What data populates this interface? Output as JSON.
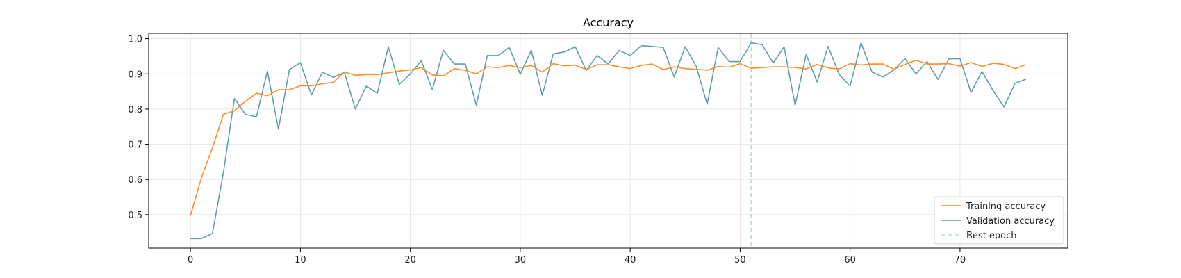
{
  "chart_data": {
    "type": "line",
    "title": "Accuracy",
    "xlabel": "",
    "ylabel": "",
    "xlim": [
      -3.8,
      79.8
    ],
    "ylim": [
      0.405,
      1.015
    ],
    "xticks": [
      0,
      10,
      20,
      30,
      40,
      50,
      60,
      70
    ],
    "yticks": [
      0.5,
      0.6,
      0.7,
      0.8,
      0.9,
      1.0
    ],
    "xtick_labels": [
      "0",
      "10",
      "20",
      "30",
      "40",
      "50",
      "60",
      "70"
    ],
    "ytick_labels": [
      "0.5",
      "0.6",
      "0.7",
      "0.8",
      "0.9",
      "1.0"
    ],
    "grid": true,
    "legend_position": "lower-right",
    "best_epoch": 51,
    "series": [
      {
        "name": "Training accuracy",
        "color": "#ff8c28",
        "values": [
          0.497,
          0.605,
          0.69,
          0.785,
          0.795,
          0.822,
          0.845,
          0.838,
          0.855,
          0.855,
          0.866,
          0.866,
          0.872,
          0.876,
          0.905,
          0.896,
          0.898,
          0.898,
          0.903,
          0.908,
          0.911,
          0.918,
          0.897,
          0.894,
          0.915,
          0.91,
          0.9,
          0.92,
          0.918,
          0.924,
          0.918,
          0.924,
          0.905,
          0.929,
          0.923,
          0.925,
          0.912,
          0.926,
          0.926,
          0.92,
          0.915,
          0.924,
          0.928,
          0.912,
          0.92,
          0.915,
          0.913,
          0.91,
          0.921,
          0.919,
          0.929,
          0.916,
          0.918,
          0.92,
          0.92,
          0.918,
          0.914,
          0.927,
          0.917,
          0.914,
          0.929,
          0.925,
          0.928,
          0.928,
          0.913,
          0.927,
          0.939,
          0.928,
          0.928,
          0.929,
          0.922,
          0.932,
          0.921,
          0.93,
          0.927,
          0.915,
          0.926
        ]
      },
      {
        "name": "Validation accuracy",
        "color": "#5f9fa8",
        "values": [
          0.432,
          0.432,
          0.447,
          0.62,
          0.83,
          0.785,
          0.778,
          0.908,
          0.743,
          0.912,
          0.932,
          0.84,
          0.905,
          0.89,
          0.904,
          0.8,
          0.865,
          0.845,
          0.977,
          0.87,
          0.9,
          0.937,
          0.855,
          0.967,
          0.928,
          0.928,
          0.811,
          0.952,
          0.952,
          0.975,
          0.899,
          0.967,
          0.839,
          0.957,
          0.962,
          0.977,
          0.91,
          0.952,
          0.928,
          0.967,
          0.952,
          0.98,
          0.978,
          0.975,
          0.891,
          0.977,
          0.922,
          0.814,
          0.975,
          0.935,
          0.935,
          0.988,
          0.983,
          0.931,
          0.977,
          0.811,
          0.955,
          0.877,
          0.978,
          0.899,
          0.865,
          0.988,
          0.905,
          0.891,
          0.912,
          0.943,
          0.9,
          0.935,
          0.884,
          0.943,
          0.943,
          0.847,
          0.907,
          0.853,
          0.806,
          0.873,
          0.885
        ]
      },
      {
        "name": "Best epoch",
        "color": "#b8dcd6",
        "style": "dashed"
      }
    ]
  }
}
